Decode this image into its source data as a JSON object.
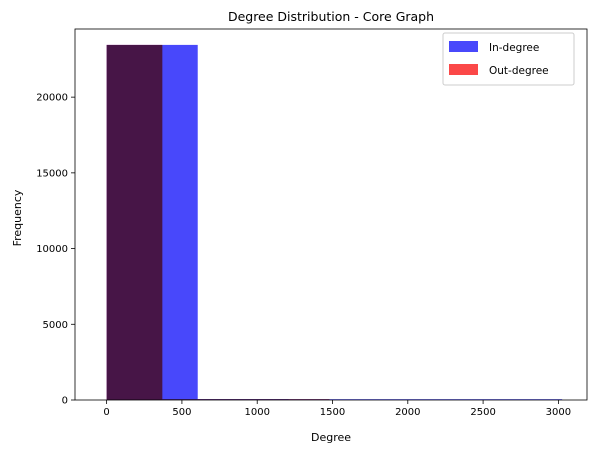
{
  "chart_data": {
    "type": "bar",
    "title": "Degree Distribution - Core Graph",
    "xlabel": "Degree",
    "ylabel": "Frequency",
    "xlim": [
      -210,
      3190
    ],
    "ylim": [
      0,
      24500
    ],
    "xticks": [
      0,
      500,
      1000,
      1500,
      2000,
      2500,
      3000
    ],
    "yticks": [
      0,
      5000,
      10000,
      15000,
      20000
    ],
    "grid": false,
    "legend_position": "top-right",
    "series": [
      {
        "name": "In-degree",
        "color": "#4848fb",
        "bins": [
          {
            "x0": 0,
            "x1": 605,
            "count": 23450
          },
          {
            "x0": 605,
            "x1": 1210,
            "count": 60
          },
          {
            "x0": 1210,
            "x1": 1815,
            "count": 4
          },
          {
            "x0": 1815,
            "x1": 2420,
            "count": 2
          },
          {
            "x0": 2420,
            "x1": 3025,
            "count": 1
          }
        ]
      },
      {
        "name": "Out-degree",
        "color": "#fb4848",
        "bins": [
          {
            "x0": 0,
            "x1": 370,
            "count": 23450
          },
          {
            "x0": 370,
            "x1": 740,
            "count": 50
          },
          {
            "x0": 740,
            "x1": 1110,
            "count": 8
          },
          {
            "x0": 1110,
            "x1": 1480,
            "count": 2
          }
        ]
      }
    ]
  }
}
